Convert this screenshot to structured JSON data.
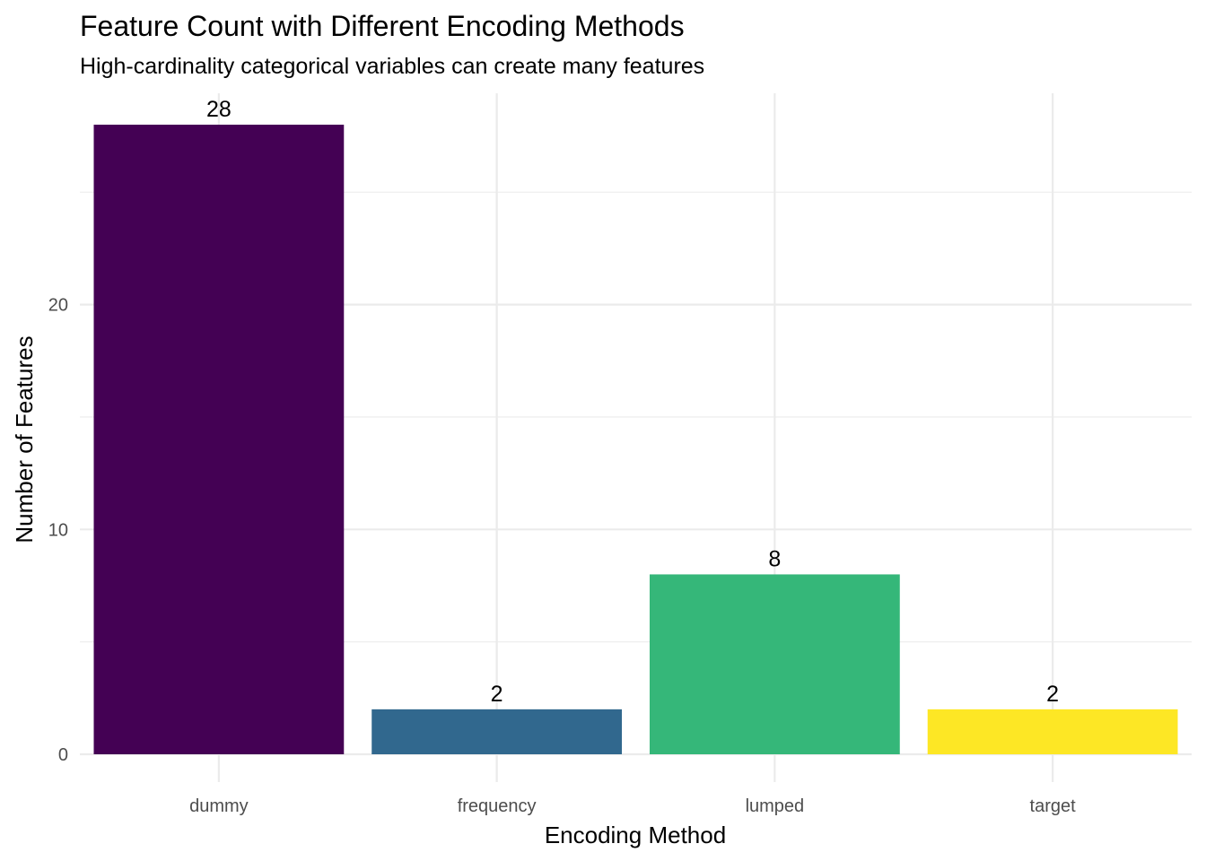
{
  "chart_data": {
    "type": "bar",
    "title": "Feature Count with Different Encoding Methods",
    "subtitle": "High-cardinality categorical variables can create many features",
    "xlabel": "Encoding Method",
    "ylabel": "Number of Features",
    "categories": [
      "dummy",
      "frequency",
      "lumped",
      "target"
    ],
    "values": [
      28,
      2,
      8,
      2
    ],
    "data_labels": [
      "28",
      "2",
      "8",
      "2"
    ],
    "colors": [
      "#440154",
      "#31688e",
      "#35b779",
      "#fde725"
    ],
    "y_ticks": [
      0,
      10,
      20
    ],
    "y_tick_labels": [
      "0",
      "10",
      "20"
    ],
    "ylim": [
      0,
      29.4
    ],
    "grid": true,
    "legend": "none"
  }
}
